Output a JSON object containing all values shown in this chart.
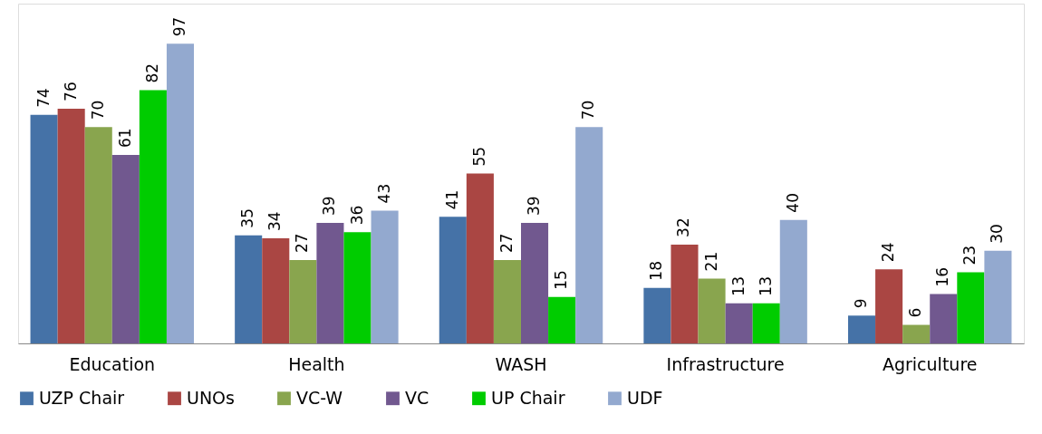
{
  "chart_data": {
    "type": "bar",
    "categories": [
      "Education",
      "Health",
      "WASH",
      "Infrastructure",
      "Agriculture"
    ],
    "series": [
      {
        "name": "UZP Chair",
        "color": "#4572a7",
        "values": [
          74,
          35,
          41,
          18,
          9
        ]
      },
      {
        "name": "UNOs",
        "color": "#aa4643",
        "values": [
          76,
          34,
          55,
          32,
          24
        ]
      },
      {
        "name": "VC-W",
        "color": "#89a54e",
        "values": [
          70,
          27,
          27,
          21,
          6
        ]
      },
      {
        "name": "VC",
        "color": "#71588f",
        "values": [
          61,
          39,
          39,
          13,
          16
        ]
      },
      {
        "name": "UP Chair",
        "color": "#00cc00",
        "values": [
          82,
          36,
          15,
          13,
          23
        ]
      },
      {
        "name": "UDF",
        "color": "#93a9cf",
        "values": [
          97,
          43,
          70,
          40,
          30
        ]
      }
    ],
    "ylim": [
      0,
      110
    ],
    "data_labels": true,
    "legend": "bottom",
    "grid": false,
    "tick_labels": "x"
  }
}
